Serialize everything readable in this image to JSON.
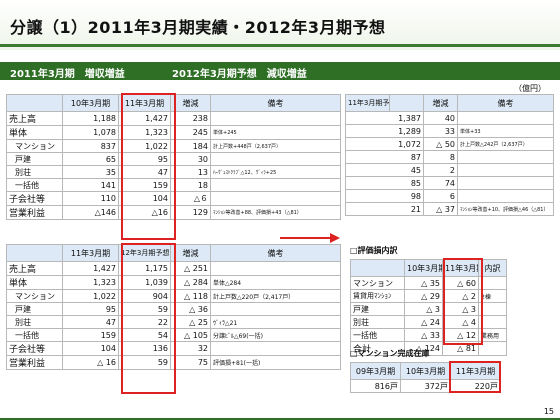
{
  "title": "分譲（1）2011年3月期実績・2012年3月期予想",
  "section": {
    "left": "2011年3月期　増収増益",
    "right": "2012年3月期予想　減収増益"
  },
  "unit": "（億円）",
  "table1": {
    "headers": [
      "",
      "10年3月期",
      "11年3月期",
      "増減",
      "備考"
    ],
    "rows": [
      [
        "売上高",
        "1,188",
        "1,427",
        "238",
        ""
      ],
      [
        "単体",
        "1,078",
        "1,323",
        "245",
        "単体+245"
      ],
      [
        "マンション",
        "837",
        "1,022",
        "184",
        "計上戸数+448戸（2,637戸）"
      ],
      [
        "戸建",
        "65",
        "95",
        "30",
        ""
      ],
      [
        "別荘",
        "35",
        "47",
        "13",
        "ﾊｰｳﾞｪｽﾄｸﾗﾌﾞ△12、ｳﾞｨﾗ+25"
      ],
      [
        "一括他",
        "141",
        "159",
        "18",
        ""
      ],
      [
        "子会社等",
        "110",
        "104",
        "△６",
        ""
      ],
      [
        "営業利益",
        "△146",
        "△16",
        "129",
        "ﾏﾝｼｮﾝ等改善+88、評価損+43（△81）"
      ]
    ]
  },
  "table2": {
    "headers": [
      "11年3月期予想",
      "",
      "増減",
      "備考"
    ],
    "rows": [
      [
        "1,387",
        "40",
        ""
      ],
      [
        "1,289",
        "33",
        "単体+33"
      ],
      [
        "1,072",
        "△ 50",
        "計上戸数△242戸（2,637戸）"
      ],
      [
        "87",
        "8",
        ""
      ],
      [
        "45",
        "2",
        ""
      ],
      [
        "85",
        "74",
        ""
      ],
      [
        "98",
        "6",
        ""
      ],
      [
        "21",
        "△ 37",
        "ﾏﾝｼｮﾝ等改善+10、評価損△46（△81）"
      ]
    ]
  },
  "table3": {
    "headers": [
      "",
      "11年3月期",
      "12年3月期予想",
      "増減",
      "備考"
    ],
    "rows": [
      [
        "売上高",
        "1,427",
        "1,175",
        "△ 251",
        ""
      ],
      [
        "単体",
        "1,323",
        "1,039",
        "△ 284",
        "単体△284"
      ],
      [
        "マンション",
        "1,022",
        "904",
        "△ 118",
        "計上戸数△220戸（2,417戸）"
      ],
      [
        "戸建",
        "95",
        "59",
        "△ 36",
        ""
      ],
      [
        "別荘",
        "47",
        "22",
        "△ 25",
        "ｳﾞｨﾗ△21"
      ],
      [
        "一括他",
        "159",
        "54",
        "△ 105",
        "分譲ﾋﾞﾙ△69(一括)"
      ],
      [
        "子会社等",
        "104",
        "136",
        "32",
        ""
      ],
      [
        "営業利益",
        "△ 16",
        "59",
        "75",
        "評価損+81(一括)"
      ]
    ]
  },
  "eval": {
    "title": "□評価損内訳",
    "headers": [
      "",
      "10年3月期",
      "11年3月期",
      "内訳"
    ],
    "rows": [
      [
        "マンション",
        "△ 35",
        "△ 60",
        ""
      ],
      [
        "賃貸用ﾏﾝｼｮﾝ",
        "△ 29",
        "△ 2",
        "2棟"
      ],
      [
        "戸建",
        "△ 3",
        "△ 3",
        ""
      ],
      [
        "別荘",
        "△ 24",
        "△ 4",
        ""
      ],
      [
        "一括他",
        "△ 33",
        "△ 12",
        "業務用"
      ],
      [
        "合計",
        "△ 124",
        "△ 81",
        ""
      ]
    ]
  },
  "inventory": {
    "title": "□マンション完成在庫",
    "headers": [
      "09年3月期",
      "10年3月期",
      "11年3月期"
    ],
    "values": [
      "816戸",
      "372戸",
      "220戸"
    ]
  },
  "page_number": "15",
  "colors": {
    "accent": "#2e6f25",
    "highlight": "#d22222",
    "header_bg": "#dde9f6"
  }
}
